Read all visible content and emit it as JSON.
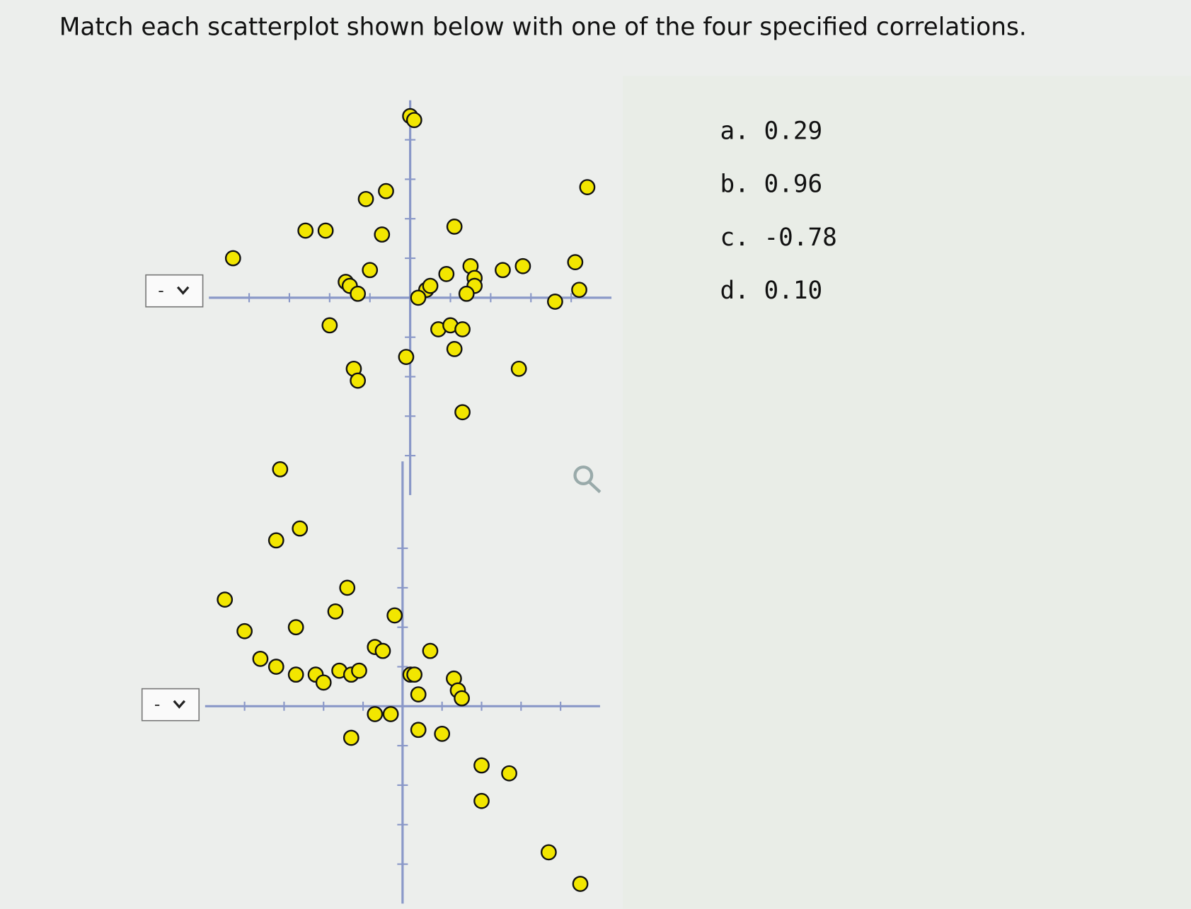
{
  "question": "Match each scatterplot shown below with one of the four specified correlations.",
  "choices": [
    "a. 0.29",
    "b. 0.96",
    "c. -0.78",
    "d. 0.10"
  ],
  "plots": [
    {
      "dropdown": "-",
      "xlim": [
        -5,
        5
      ],
      "ylim": [
        -5,
        5
      ],
      "xticks": [
        -4,
        -3,
        -2,
        -1,
        1,
        2,
        3,
        4
      ],
      "yticks": [
        -4,
        -3,
        -2,
        -1,
        1,
        2,
        3,
        4
      ],
      "x": [
        0,
        0.1,
        -1.1,
        -0.6,
        4.4,
        -2.6,
        -2.1,
        -0.7,
        1.1,
        -4.4,
        -1.6,
        -1.0,
        -1.5,
        -1.3,
        0.4,
        0.2,
        0.5,
        0.9,
        1.5,
        1.6,
        1.6,
        1.4,
        2.3,
        2.8,
        4.1,
        3.6,
        4.2,
        -2.0,
        0.7,
        1.0,
        1.3,
        1.1,
        -0.1,
        2.7,
        -1.4,
        -1.3,
        1.3
      ],
      "y": [
        4.6,
        4.5,
        2.5,
        2.7,
        2.8,
        1.7,
        1.7,
        1.6,
        1.8,
        1.0,
        0.4,
        0.7,
        0.3,
        0.1,
        0.2,
        0.0,
        0.3,
        0.6,
        0.8,
        0.5,
        0.3,
        0.1,
        0.7,
        0.8,
        0.9,
        -0.1,
        0.2,
        -0.7,
        -0.8,
        -0.7,
        -0.8,
        -1.3,
        -1.5,
        -1.8,
        -1.8,
        -2.1,
        -2.9
      ]
    },
    {
      "dropdown": "-",
      "xlim": [
        -5,
        5
      ],
      "ylim": [
        -5,
        6.2
      ],
      "xticks": [
        -4,
        -3,
        -2,
        -1,
        1,
        2,
        3,
        4
      ],
      "yticks": [
        -4,
        -3,
        -2,
        -1,
        1,
        2,
        3,
        4
      ],
      "x": [
        -3.1,
        -3.2,
        -2.6,
        -4.5,
        -1.4,
        -1.7,
        -4.0,
        -2.7,
        -0.2,
        -0.7,
        -0.5,
        0.7,
        -3.6,
        -3.2,
        -2.7,
        -2.2,
        -2.0,
        -1.6,
        -1.3,
        -1.1,
        0.2,
        0.3,
        1.3,
        1.4,
        1.5,
        0.4,
        -0.7,
        -0.3,
        -1.3,
        0.4,
        1.0,
        2.0,
        2.7,
        2.0,
        3.7,
        4.5
      ],
      "y": [
        6.0,
        4.2,
        4.5,
        2.7,
        3.0,
        2.4,
        1.9,
        2.0,
        2.3,
        1.5,
        1.4,
        1.4,
        1.2,
        1.0,
        0.8,
        0.8,
        0.6,
        0.9,
        0.8,
        0.9,
        0.8,
        0.8,
        0.7,
        0.4,
        0.2,
        0.3,
        -0.2,
        -0.2,
        -0.8,
        -0.6,
        -0.7,
        -1.5,
        -1.7,
        -2.4,
        -3.7,
        -4.5
      ]
    }
  ]
}
